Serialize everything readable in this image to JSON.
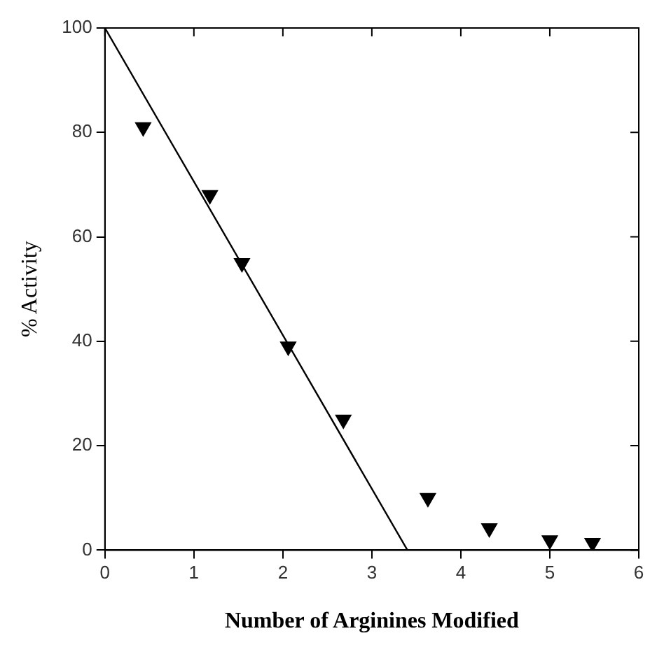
{
  "chart_data": {
    "type": "scatter",
    "xlabel": "Number of Arginines Modified",
    "ylabel": "% Activity",
    "xlim": [
      0,
      6
    ],
    "xticks": [
      0,
      1,
      2,
      3,
      4,
      5,
      6
    ],
    "ylim": [
      0,
      100
    ],
    "yticks": [
      0,
      20,
      40,
      60,
      80,
      100
    ],
    "grid": false,
    "legend": false,
    "marker": "triangle",
    "series": [
      {
        "color": "#000000",
        "x": [
          0.43,
          1.18,
          1.54,
          2.06,
          2.68,
          3.63,
          4.32,
          5.0,
          5.48
        ],
        "values": [
          81,
          68,
          55,
          39,
          25,
          10,
          4.2,
          1.9,
          1.4
        ]
      },
      {
        "type": "line",
        "color": "#000000",
        "marker": "none",
        "x": [
          0,
          3.4
        ],
        "values": [
          100,
          0
        ]
      }
    ]
  }
}
